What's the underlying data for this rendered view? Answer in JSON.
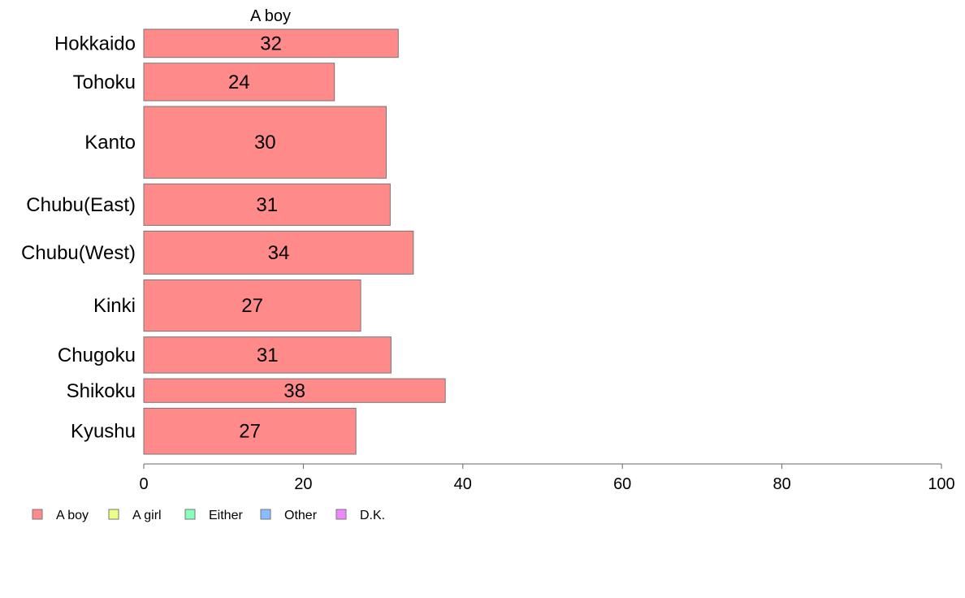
{
  "chart_data": {
    "type": "bar",
    "orientation": "horizontal",
    "title": "A boy",
    "categories": [
      "Hokkaido",
      "Tohoku",
      "Kanto",
      "Chubu(East)",
      "Chubu(West)",
      "Kinki",
      "Chugoku",
      "Shikoku",
      "Kyushu"
    ],
    "bar_weights": [
      5.7,
      7.6,
      14.5,
      8.4,
      8.7,
      10.4,
      7.3,
      4.8,
      9.3
    ],
    "series": [
      {
        "name": "A boy",
        "values": [
          31.9,
          23.9,
          30.4,
          30.9,
          33.8,
          27.2,
          31.0,
          37.8,
          26.6
        ],
        "labels": [
          "32",
          "24",
          "30",
          "31",
          "34",
          "27",
          "31",
          "38",
          "27"
        ],
        "color": "#ff8a8a"
      }
    ],
    "xlim": [
      0,
      100
    ],
    "xticks": [
      "0",
      "20",
      "40",
      "60",
      "80",
      "100"
    ],
    "xlabel": "",
    "ylabel": "",
    "grid": false,
    "legend_position": "bottom-left",
    "legend": [
      {
        "label": "A boy",
        "color": "#ff8a8a"
      },
      {
        "label": "A girl",
        "color": "#eeff88"
      },
      {
        "label": "Either",
        "color": "#88ffbb"
      },
      {
        "label": "Other",
        "color": "#88bbff"
      },
      {
        "label": "D.K.",
        "color": "#ee88ff"
      }
    ]
  }
}
